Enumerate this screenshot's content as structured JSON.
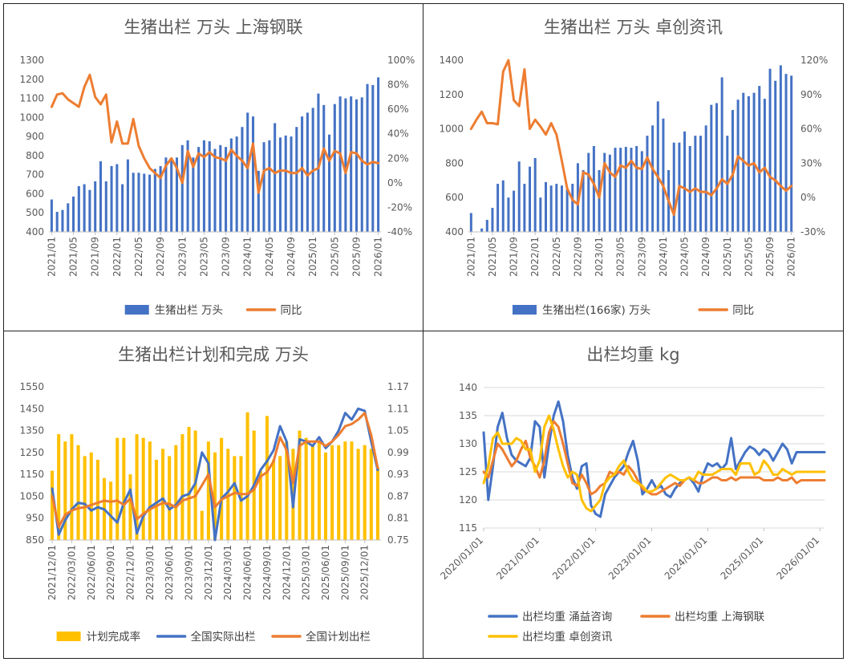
{
  "colors": {
    "blue": "#4472c4",
    "orange": "#ed7d31",
    "gold": "#ffc000",
    "grid": "#d9d9d9",
    "axis": "#bfbfbf"
  },
  "chart_data": [
    {
      "type": "bar+line",
      "title": "生猪出栏 万头 上海钢联",
      "x": [
        "2021/01",
        "2021/02",
        "2021/03",
        "2021/04",
        "2021/05",
        "2021/06",
        "2021/07",
        "2021/08",
        "2021/09",
        "2021/10",
        "2021/11",
        "2021/12",
        "2022/01",
        "2022/02",
        "2022/03",
        "2022/04",
        "2022/05",
        "2022/06",
        "2022/07",
        "2022/08",
        "2022/09",
        "2022/10",
        "2022/11",
        "2022/12",
        "2023/01",
        "2023/02",
        "2023/03",
        "2023/04",
        "2023/05",
        "2023/06",
        "2023/07",
        "2023/08",
        "2023/09",
        "2023/10",
        "2023/11",
        "2023/12",
        "2024/01",
        "2024/02",
        "2024/03",
        "2024/04",
        "2024/05",
        "2024/06",
        "2024/07",
        "2024/08",
        "2024/09",
        "2024/10",
        "2024/11",
        "2024/12",
        "2025/01",
        "2025/02",
        "2025/03",
        "2025/04",
        "2025/05",
        "2025/06",
        "2025/07",
        "2025/08",
        "2025/09",
        "2025/10",
        "2025/11",
        "2025/12",
        "2026/01"
      ],
      "xticks": [
        "2021/01",
        "2021/05",
        "2021/09",
        "2022/01",
        "2022/05",
        "2022/09",
        "2023/01",
        "2023/05",
        "2023/09",
        "2024/01",
        "2024/05",
        "2024/09",
        "2025/01",
        "2025/05",
        "2025/09",
        "2026/01"
      ],
      "y1": {
        "min": 400,
        "max": 1300,
        "step": 100
      },
      "y2": {
        "min": -40,
        "max": 100,
        "step": 20,
        "suffix": "%"
      },
      "series": [
        {
          "name": "生猪出栏 万头",
          "kind": "bar",
          "axis": "y1",
          "values": [
            570,
            505,
            515,
            550,
            585,
            640,
            650,
            620,
            665,
            770,
            665,
            745,
            755,
            650,
            780,
            710,
            710,
            705,
            700,
            730,
            745,
            790,
            780,
            790,
            855,
            880,
            790,
            845,
            880,
            875,
            835,
            855,
            845,
            890,
            900,
            950,
            1025,
            1005,
            720,
            870,
            880,
            970,
            895,
            905,
            900,
            950,
            1005,
            1025,
            1050,
            1125,
            1065,
            910,
            1070,
            1110,
            1100,
            1110,
            1095,
            1105,
            1175,
            1170,
            1210
          ]
        },
        {
          "name": "同比",
          "kind": "line",
          "axis": "y2",
          "values": [
            62,
            72,
            73,
            68,
            65,
            62,
            78,
            88,
            70,
            64,
            72,
            33,
            50,
            32,
            32,
            52,
            30,
            20,
            12,
            8,
            4,
            14,
            20,
            12,
            0,
            26,
            13,
            24,
            21,
            25,
            21,
            20,
            18,
            27,
            22,
            18,
            12,
            32,
            -8,
            10,
            12,
            8,
            10,
            10,
            8,
            8,
            12,
            6,
            10,
            12,
            28,
            18,
            26,
            24,
            8,
            25,
            24,
            18,
            15,
            17,
            16
          ]
        }
      ],
      "xlabel": "",
      "ylabel": ""
    },
    {
      "type": "bar+line",
      "title": "生猪出栏 万头 卓创资讯",
      "x": [
        "2021/01",
        "2021/02",
        "2021/03",
        "2021/04",
        "2021/05",
        "2021/06",
        "2021/07",
        "2021/08",
        "2021/09",
        "2021/10",
        "2021/11",
        "2021/12",
        "2022/01",
        "2022/02",
        "2022/03",
        "2022/04",
        "2022/05",
        "2022/06",
        "2022/07",
        "2022/08",
        "2022/09",
        "2022/10",
        "2022/11",
        "2022/12",
        "2023/01",
        "2023/02",
        "2023/03",
        "2023/04",
        "2023/05",
        "2023/06",
        "2023/07",
        "2023/08",
        "2023/09",
        "2023/10",
        "2023/11",
        "2023/12",
        "2024/01",
        "2024/02",
        "2024/03",
        "2024/04",
        "2024/05",
        "2024/06",
        "2024/07",
        "2024/08",
        "2024/09",
        "2024/10",
        "2024/11",
        "2024/12",
        "2025/01",
        "2025/02",
        "2025/03",
        "2025/04",
        "2025/05",
        "2025/06",
        "2025/07",
        "2025/08",
        "2025/09",
        "2025/10",
        "2025/11",
        "2025/12",
        "2026/01"
      ],
      "xticks": [
        "2021/01",
        "2021/05",
        "2021/09",
        "2022/01",
        "2022/05",
        "2022/09",
        "2023/01",
        "2023/05",
        "2023/09",
        "2024/01",
        "2024/05",
        "2024/09",
        "2025/01",
        "2025/05",
        "2025/09",
        "2026/01"
      ],
      "y1": {
        "min": 400,
        "max": 1400,
        "step": 200
      },
      "y2": {
        "min": -30,
        "max": 120,
        "step": 30,
        "suffix": "%"
      },
      "series": [
        {
          "name": "生猪出栏(166家) 万头",
          "kind": "bar",
          "axis": "y1",
          "values": [
            510,
            380,
            420,
            470,
            540,
            680,
            700,
            600,
            640,
            810,
            680,
            780,
            830,
            600,
            690,
            670,
            680,
            670,
            650,
            680,
            800,
            760,
            860,
            900,
            760,
            860,
            850,
            890,
            890,
            895,
            890,
            900,
            870,
            960,
            1020,
            1160,
            1060,
            760,
            920,
            920,
            985,
            900,
            960,
            960,
            1020,
            1140,
            1150,
            1300,
            960,
            1110,
            1170,
            1210,
            1190,
            1210,
            1250,
            1175,
            1350,
            1280,
            1370,
            1320,
            1310
          ]
        },
        {
          "name": "同比",
          "kind": "line",
          "axis": "y2",
          "values": [
            60,
            68,
            75,
            65,
            65,
            64,
            110,
            130,
            85,
            80,
            112,
            60,
            68,
            62,
            55,
            65,
            55,
            32,
            8,
            -2,
            -6,
            22,
            20,
            12,
            0,
            30,
            22,
            18,
            28,
            26,
            32,
            26,
            25,
            35,
            25,
            18,
            10,
            -3,
            -15,
            10,
            8,
            5,
            8,
            5,
            5,
            2,
            8,
            16,
            12,
            20,
            36,
            32,
            28,
            30,
            22,
            26,
            18,
            15,
            10,
            6,
            10
          ]
        }
      ],
      "xlabel": "",
      "ylabel": ""
    },
    {
      "type": "bar+line",
      "title": "生猪出栏计划和完成 万头",
      "x": [
        "2021/12",
        "2022/01",
        "2022/02",
        "2022/03",
        "2022/04",
        "2022/05",
        "2022/06",
        "2022/07",
        "2022/08",
        "2022/09",
        "2022/10",
        "2022/11",
        "2022/12",
        "2023/01",
        "2023/02",
        "2023/03",
        "2023/04",
        "2023/05",
        "2023/06",
        "2023/07",
        "2023/08",
        "2023/09",
        "2023/10",
        "2023/11",
        "2023/12",
        "2024/01",
        "2024/02",
        "2024/03",
        "2024/04",
        "2024/05",
        "2024/06",
        "2024/07",
        "2024/08",
        "2024/09",
        "2024/10",
        "2024/11",
        "2024/12",
        "2025/01",
        "2025/02",
        "2025/03",
        "2025/04",
        "2025/05",
        "2025/06",
        "2025/07",
        "2025/08",
        "2025/09",
        "2025/10",
        "2025/11",
        "2025/12",
        "2026/01",
        "2026/02"
      ],
      "xticks": [
        "2021/12/01",
        "2022/03/01",
        "2022/06/01",
        "2022/09/01",
        "2022/12/01",
        "2023/03/01",
        "2023/06/01",
        "2023/09/01",
        "2023/12/01",
        "2024/03/01",
        "2024/06/01",
        "2024/09/01",
        "2024/12/01",
        "2025/03/01",
        "2025/06/01",
        "2025/09/01",
        "2025/12/01"
      ],
      "y1": {
        "min": 850,
        "max": 1550,
        "step": 100
      },
      "y2": {
        "min": 0.75,
        "max": 1.17,
        "step": 0.06
      },
      "series": [
        {
          "name": "计划完成率",
          "kind": "bar",
          "axis": "y2",
          "values": [
            0.94,
            1.04,
            1.02,
            1.04,
            1.01,
            0.98,
            0.99,
            0.97,
            0.92,
            0.91,
            1.03,
            1.03,
            0.93,
            1.04,
            1.03,
            1.02,
            0.97,
            1.0,
            0.98,
            1.01,
            1.04,
            1.06,
            1.05,
            0.83,
            1.02,
            0.99,
            1.03,
            1.0,
            0.98,
            0.98,
            1.1,
            1.05,
            0.94,
            1.09,
            0.97,
            0.98,
            1.02,
            1.0,
            1.05,
            1.03,
            1.01,
            1.02,
            0.99,
            1.01,
            1.01,
            1.02,
            1.02,
            1.0,
            1.01,
            1.0,
            0.95
          ]
        },
        {
          "name": "全国实际出栏",
          "kind": "line",
          "axis": "y1",
          "values": [
            1085,
            875,
            940,
            990,
            1020,
            1015,
            985,
            1000,
            990,
            960,
            930,
            1020,
            1080,
            880,
            960,
            1000,
            1020,
            1040,
            990,
            1010,
            1050,
            1060,
            1110,
            1250,
            1200,
            850,
            1040,
            1070,
            1110,
            1030,
            1050,
            1100,
            1170,
            1210,
            1260,
            1370,
            1300,
            1000,
            1310,
            1300,
            1280,
            1320,
            1270,
            1300,
            1350,
            1430,
            1400,
            1450,
            1440,
            1300,
            1170
          ]
        },
        {
          "name": "全国计划出栏",
          "kind": "line",
          "axis": "y1",
          "values": [
            1050,
            910,
            965,
            985,
            995,
            1000,
            1010,
            1020,
            1030,
            1025,
            1030,
            1010,
            1040,
            945,
            970,
            990,
            1005,
            1020,
            1015,
            1000,
            1030,
            1040,
            1050,
            1100,
            1150,
            1000,
            1035,
            1050,
            1065,
            1060,
            1060,
            1080,
            1140,
            1160,
            1210,
            1320,
            1260,
            1110,
            1280,
            1300,
            1300,
            1300,
            1280,
            1300,
            1330,
            1370,
            1380,
            1400,
            1430,
            1330,
            1180
          ]
        }
      ],
      "xlabel": "",
      "ylabel": ""
    },
    {
      "type": "line",
      "title": "出栏均重 kg",
      "x": [
        "2020/01",
        "2020/02",
        "2020/03",
        "2020/04",
        "2020/05",
        "2020/06",
        "2020/07",
        "2020/08",
        "2020/09",
        "2020/10",
        "2020/11",
        "2020/12",
        "2021/01",
        "2021/02",
        "2021/03",
        "2021/04",
        "2021/05",
        "2021/06",
        "2021/07",
        "2021/08",
        "2021/09",
        "2021/10",
        "2021/11",
        "2021/12",
        "2022/01",
        "2022/02",
        "2022/03",
        "2022/04",
        "2022/05",
        "2022/06",
        "2022/07",
        "2022/08",
        "2022/09",
        "2022/10",
        "2022/11",
        "2022/12",
        "2023/01",
        "2023/02",
        "2023/03",
        "2023/04",
        "2023/05",
        "2023/06",
        "2023/07",
        "2023/08",
        "2023/09",
        "2023/10",
        "2023/11",
        "2023/12",
        "2024/01",
        "2024/02",
        "2024/03",
        "2024/04",
        "2024/05",
        "2024/06",
        "2024/07",
        "2024/08",
        "2024/09",
        "2024/10",
        "2024/11",
        "2024/12",
        "2025/01",
        "2025/02",
        "2025/03",
        "2025/04",
        "2025/05",
        "2025/06",
        "2025/07",
        "2025/08",
        "2025/09",
        "2025/10",
        "2025/11",
        "2025/12",
        "2026/01",
        "2026/02"
      ],
      "xticks": [
        "2020/01/01",
        "2021/01/01",
        "2022/01/01",
        "2023/01/01",
        "2024/01/01",
        "2025/01/01",
        "2026/01/01"
      ],
      "y1": {
        "min": 115,
        "max": 140,
        "step": 5
      },
      "series": [
        {
          "name": "出栏均重 涌益咨询",
          "kind": "line",
          "axis": "y1",
          "values": [
            132,
            120,
            126,
            133,
            135.5,
            131,
            128,
            127,
            126.5,
            126,
            127.5,
            134,
            133,
            124,
            130,
            135,
            137.5,
            134,
            128,
            124,
            122,
            126,
            126.5,
            119,
            117.5,
            117,
            121,
            122.5,
            124,
            125,
            126,
            128.5,
            130.5,
            127,
            121,
            122,
            123.5,
            122,
            122.5,
            121,
            120.5,
            122,
            123,
            123.5,
            124,
            123,
            121.5,
            124.5,
            126.5,
            126,
            126.5,
            125.5,
            126.5,
            131,
            125.5,
            127,
            128.5,
            129.5,
            129,
            128,
            129,
            128.5,
            127,
            128.5,
            130,
            129,
            126.5,
            128.5,
            128.5,
            128.5,
            128.5,
            128.5,
            128.5,
            128.5
          ]
        },
        {
          "name": "出栏均重 上海钢联",
          "kind": "line",
          "axis": "y1",
          "values": [
            125,
            124,
            127,
            130,
            129,
            127.5,
            126,
            127,
            129,
            130.5,
            127.5,
            126,
            124,
            127,
            132,
            134,
            133,
            130,
            126.5,
            123,
            122.5,
            124.5,
            123,
            121,
            121.5,
            122.5,
            123,
            125,
            124.5,
            125,
            124.5,
            126,
            125,
            123.5,
            122,
            121.5,
            121,
            121,
            121.5,
            122,
            122.5,
            123,
            122.5,
            123.5,
            124,
            123.5,
            123,
            123,
            123.5,
            124,
            124,
            123.5,
            123.5,
            124,
            123.5,
            124,
            124,
            124,
            124,
            124,
            123.5,
            123.5,
            123.5,
            124,
            123.5,
            123.5,
            124,
            123,
            123.5,
            123.5,
            123.5,
            123.5,
            123.5,
            123.5
          ]
        },
        {
          "name": "出栏均重 卓创资讯",
          "kind": "line",
          "axis": "y1",
          "values": [
            123,
            126,
            131,
            132,
            130,
            130,
            130,
            131,
            130.5,
            129,
            129,
            125,
            127,
            133,
            135,
            132.5,
            129,
            126,
            124,
            125,
            124.5,
            120,
            118.5,
            118,
            119,
            120,
            123,
            124,
            124.5,
            126,
            127,
            125,
            123.5,
            123,
            122.5,
            121.5,
            121.5,
            122,
            123,
            124,
            124.5,
            124,
            123.5,
            123.5,
            124,
            123.5,
            125,
            124.5,
            124.5,
            124.5,
            125,
            125.5,
            125.5,
            125.5,
            124.5,
            126.5,
            126.5,
            126.5,
            124.5,
            125,
            127,
            126,
            124.5,
            124.5,
            125.5,
            125,
            124.5,
            125,
            125,
            125,
            125,
            125,
            125,
            125
          ]
        }
      ],
      "xlabel": "",
      "ylabel": ""
    }
  ]
}
